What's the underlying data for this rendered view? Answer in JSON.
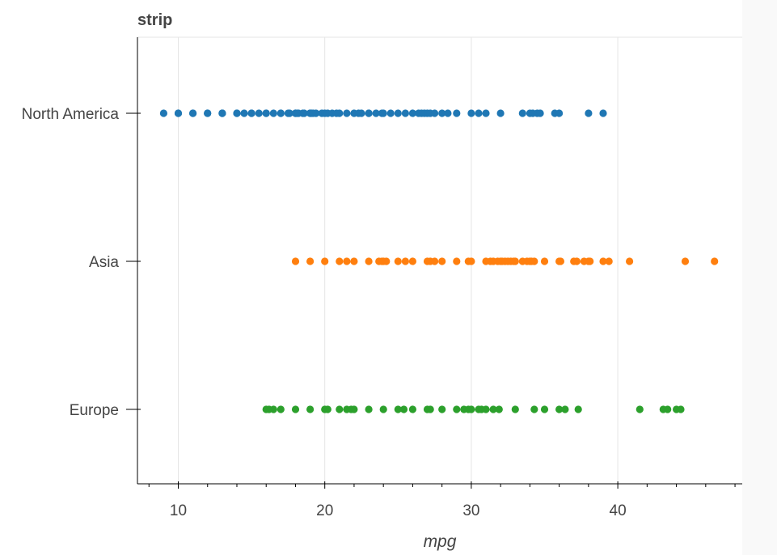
{
  "chart_data": {
    "type": "scatter",
    "title": "strip",
    "xlabel": "mpg",
    "ylabel": "",
    "xlim": [
      7.1,
      48.2
    ],
    "xticks": [
      10,
      20,
      30,
      40
    ],
    "categories": [
      "North America",
      "Asia",
      "Europe"
    ],
    "grid": {
      "x": true,
      "y": false
    },
    "legend": "none",
    "series": [
      {
        "category": "North America",
        "color": "#1f77b4",
        "values": [
          9,
          10,
          10,
          11,
          11,
          12,
          12,
          13,
          13,
          13,
          14,
          14,
          14.5,
          15,
          15,
          15.5,
          16,
          16,
          16.5,
          17,
          17,
          17.5,
          17.6,
          18,
          18,
          18.1,
          18.2,
          18.5,
          18.6,
          19,
          19,
          19.1,
          19.2,
          19.4,
          19.8,
          20,
          20.2,
          20.5,
          20.8,
          21,
          21.5,
          22,
          22.3,
          22.5,
          23,
          23,
          23.5,
          23.9,
          24,
          24.5,
          25,
          25.5,
          26,
          26.4,
          26.6,
          26.8,
          27,
          27.2,
          27.5,
          28,
          28.4,
          29,
          30,
          30.5,
          31,
          32,
          33.5,
          34,
          34.2,
          34.5,
          34.7,
          35.7,
          36,
          38,
          39
        ]
      },
      {
        "category": "Asia",
        "color": "#ff7f0e",
        "values": [
          18,
          19,
          20,
          21,
          21.5,
          22,
          23,
          23.7,
          23.9,
          24,
          24.2,
          25,
          25.5,
          26,
          27,
          27.2,
          27.5,
          28,
          29,
          29.8,
          30,
          31,
          31.3,
          31.5,
          31.8,
          32,
          32.1,
          32.3,
          32.5,
          32.7,
          32.9,
          33,
          33.5,
          33.8,
          34,
          34.1,
          34.3,
          35,
          36,
          36.1,
          37,
          37.2,
          37.7,
          38,
          38.1,
          39,
          39.4,
          40.8,
          44.6,
          46.6
        ]
      },
      {
        "category": "Europe",
        "color": "#2ca02c",
        "values": [
          16,
          16.2,
          16.5,
          17,
          18,
          19,
          20,
          20.2,
          21,
          21.5,
          21.8,
          22,
          23,
          24,
          25,
          25.4,
          26,
          27,
          27.2,
          28,
          29,
          29.5,
          29.8,
          30,
          30.5,
          30.7,
          31,
          31.5,
          31.9,
          33,
          34.3,
          35,
          36,
          36.4,
          37.3,
          41.5,
          43.1,
          43.4,
          44,
          44.3
        ]
      }
    ]
  }
}
